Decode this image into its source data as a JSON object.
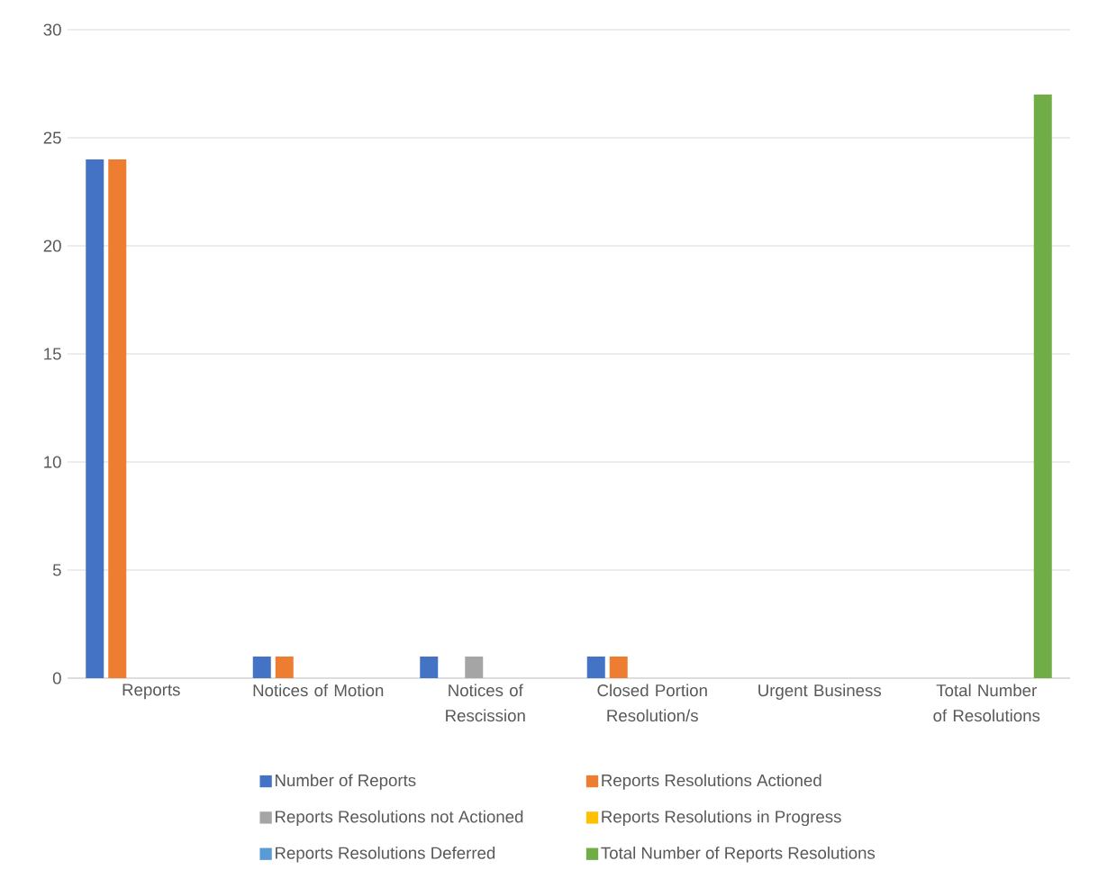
{
  "chart_data": {
    "type": "bar",
    "categories": [
      "Reports",
      "Notices of Motion",
      "Notices of Rescission",
      "Closed Portion Resolution/s",
      "Urgent Business",
      "Total Number of Resolutions"
    ],
    "series": [
      {
        "name": "Number of Reports",
        "color": "#4472c4",
        "values": [
          24,
          1,
          1,
          1,
          0,
          0
        ]
      },
      {
        "name": "Reports Resolutions Actioned",
        "color": "#ed7d31",
        "values": [
          24,
          1,
          0,
          1,
          0,
          0
        ]
      },
      {
        "name": "Reports Resolutions not Actioned",
        "color": "#a5a5a5",
        "values": [
          0,
          0,
          1,
          0,
          0,
          0
        ]
      },
      {
        "name": "Reports Resolutions in Progress",
        "color": "#ffc000",
        "values": [
          0,
          0,
          0,
          0,
          0,
          0
        ]
      },
      {
        "name": "Reports Resolutions Deferred",
        "color": "#5b9bd5",
        "values": [
          0,
          0,
          0,
          0,
          0,
          0
        ]
      },
      {
        "name": "Total Number of Reports Resolutions",
        "color": "#70ad47",
        "values": [
          0,
          0,
          0,
          0,
          0,
          27
        ]
      }
    ],
    "ylim": [
      0,
      30
    ],
    "yticks": [
      0,
      5,
      10,
      15,
      20,
      25,
      30
    ],
    "grid": "y",
    "legend": "bottom"
  }
}
